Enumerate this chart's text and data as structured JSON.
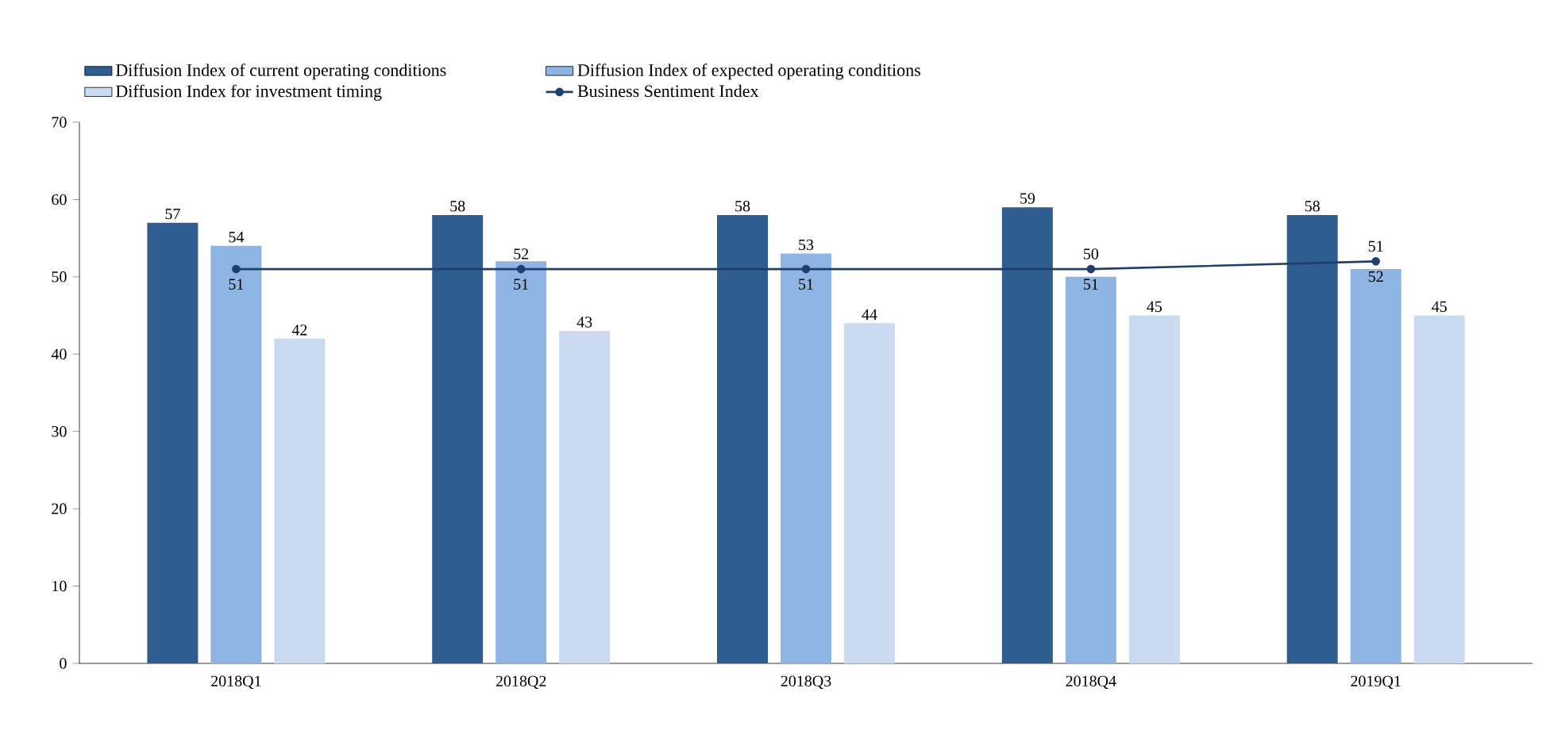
{
  "chart_data": {
    "type": "bar",
    "categories": [
      "2018Q1",
      "2018Q2",
      "2018Q3",
      "2018Q4",
      "2019Q1"
    ],
    "series": [
      {
        "name": "Diffusion Index of current operating conditions",
        "color": "#2f5d8f",
        "values": [
          57,
          58,
          58,
          59,
          58
        ]
      },
      {
        "name": "Diffusion Index of expected operating conditions",
        "color": "#8db4e2",
        "values": [
          54,
          52,
          53,
          50,
          51
        ]
      },
      {
        "name": "Diffusion Index for investment timing",
        "color": "#c9daf1",
        "values": [
          42,
          43,
          44,
          45,
          45
        ]
      },
      {
        "name": "Business Sentiment Index",
        "type": "line",
        "color": "#1f3f6f",
        "values": [
          51,
          51,
          51,
          51,
          52
        ],
        "marker": "circle",
        "line_style": "solid"
      }
    ],
    "ylim": [
      0,
      70
    ],
    "yticks": [
      0,
      10,
      20,
      30,
      40,
      50,
      60,
      70
    ],
    "data_labels": true,
    "legend": "top",
    "grid": false
  }
}
